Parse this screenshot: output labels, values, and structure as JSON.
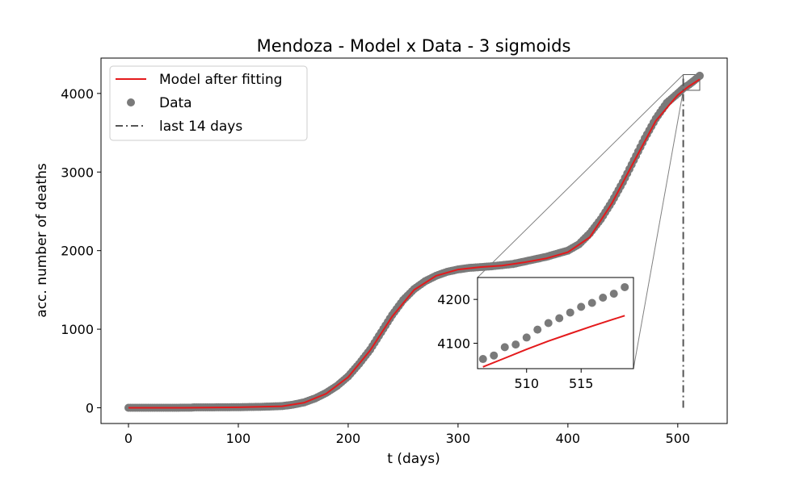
{
  "chart_data": {
    "type": "scatter",
    "title": "Mendoza - Model x Data - 3 sigmoids",
    "xlabel": "t (days)",
    "ylabel": "acc. number of deaths",
    "xlim": [
      -25,
      545
    ],
    "ylim": [
      -200,
      4450
    ],
    "xticks": [
      0,
      100,
      200,
      300,
      400,
      500
    ],
    "yticks": [
      0,
      1000,
      2000,
      3000,
      4000
    ],
    "grid": false,
    "legend_position": "upper-left",
    "legend": [
      "Model after fitting",
      "Data",
      "last 14 days"
    ],
    "series_colors": {
      "model": "#e41a1c",
      "data": "#7a7a7a",
      "vline": "#555555"
    },
    "vline_x": 505,
    "data_points": {
      "x": [
        0,
        20,
        40,
        57,
        60,
        80,
        100,
        120,
        140,
        150,
        160,
        170,
        180,
        190,
        200,
        210,
        220,
        230,
        240,
        250,
        260,
        270,
        280,
        290,
        300,
        310,
        320,
        330,
        340,
        350,
        360,
        370,
        380,
        390,
        400,
        410,
        420,
        430,
        440,
        450,
        460,
        470,
        480,
        490,
        500,
        505,
        510,
        515,
        520
      ],
      "y": [
        0,
        0,
        0,
        2,
        5,
        6,
        8,
        12,
        22,
        40,
        70,
        120,
        190,
        280,
        400,
        560,
        740,
        960,
        1180,
        1370,
        1510,
        1610,
        1680,
        1730,
        1760,
        1780,
        1790,
        1800,
        1815,
        1830,
        1860,
        1890,
        1920,
        1960,
        2000,
        2080,
        2220,
        2400,
        2620,
        2870,
        3150,
        3430,
        3680,
        3880,
        4000,
        4065,
        4110,
        4165,
        4225
      ]
    },
    "model_curve": {
      "x": [
        0,
        50,
        100,
        140,
        160,
        180,
        200,
        220,
        240,
        260,
        280,
        300,
        320,
        340,
        360,
        380,
        400,
        420,
        440,
        460,
        480,
        500,
        510,
        520
      ],
      "y": [
        0,
        0,
        6,
        20,
        65,
        180,
        390,
        730,
        1160,
        1500,
        1680,
        1760,
        1790,
        1810,
        1850,
        1900,
        1980,
        2170,
        2600,
        3130,
        3650,
        3980,
        4090,
        4180
      ]
    },
    "inset": {
      "xlim": [
        505.5,
        519.8
      ],
      "ylim": [
        4042,
        4250
      ],
      "xticks": [
        510,
        515
      ],
      "yticks": [
        4100,
        4200
      ],
      "data_points": {
        "x": [
          506,
          507,
          508,
          509,
          510,
          511,
          512,
          513,
          514,
          515,
          516,
          517,
          518,
          519
        ],
        "y": [
          4064,
          4072,
          4091,
          4097,
          4113,
          4131,
          4146,
          4157,
          4170,
          4183,
          4192,
          4204,
          4213,
          4228
        ]
      },
      "model_curve": {
        "x": [
          506,
          508,
          510,
          512,
          514,
          516,
          518,
          519
        ],
        "y": [
          4046,
          4066,
          4086,
          4105,
          4122,
          4139,
          4155,
          4163
        ]
      },
      "zoom_box": {
        "x": [
          505,
          520
        ],
        "y": [
          4040,
          4240
        ]
      }
    }
  }
}
